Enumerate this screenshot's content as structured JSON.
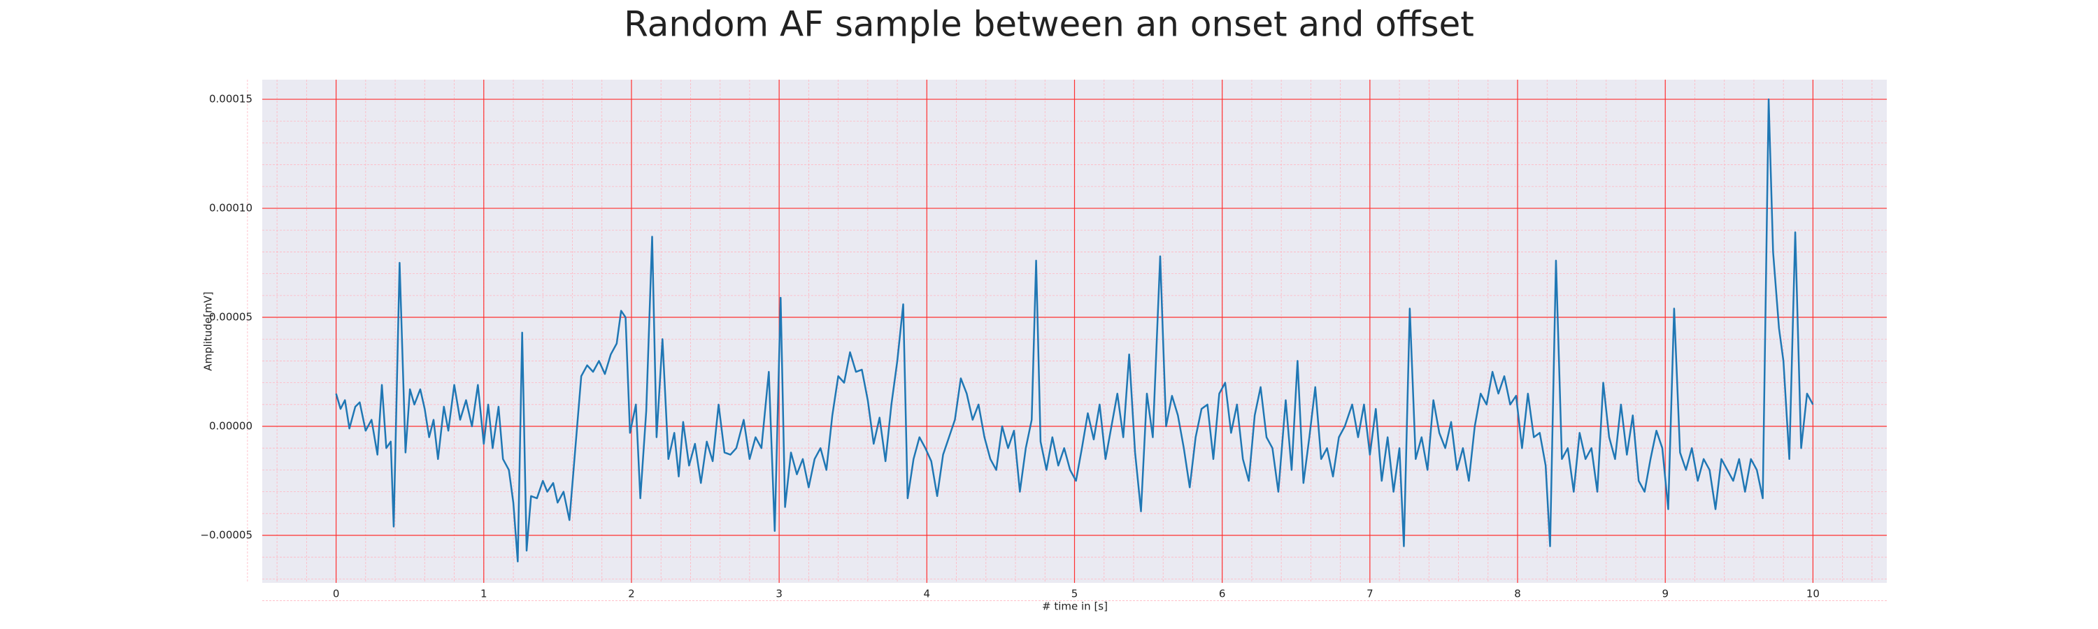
{
  "chart_data": {
    "type": "line",
    "title": "Random AF sample between an onset and offset",
    "xlabel": "# time in [s]",
    "ylabel": "Amplitude[mV]",
    "color": "#1f77b4",
    "grid": true,
    "minor_grid": true,
    "xlim": [
      -0.5,
      10.5
    ],
    "ylim": [
      -7.18e-05,
      0.000159
    ],
    "xticks": [
      0,
      1,
      2,
      3,
      4,
      5,
      6,
      7,
      8,
      9,
      10
    ],
    "yticks": [
      {
        "value": -5e-05,
        "label": "−0.00005"
      },
      {
        "value": 0,
        "label": "0.00000"
      },
      {
        "value": 5e-05,
        "label": "0.00005"
      },
      {
        "value": 0.0001,
        "label": "0.00010"
      },
      {
        "value": 0.00015,
        "label": "0.00015"
      }
    ],
    "x": [
      0.0,
      0.03,
      0.06,
      0.09,
      0.13,
      0.16,
      0.2,
      0.24,
      0.28,
      0.31,
      0.34,
      0.37,
      0.39,
      0.43,
      0.47,
      0.5,
      0.53,
      0.57,
      0.6,
      0.63,
      0.66,
      0.69,
      0.73,
      0.76,
      0.8,
      0.84,
      0.88,
      0.92,
      0.96,
      1.0,
      1.03,
      1.06,
      1.1,
      1.13,
      1.17,
      1.2,
      1.23,
      1.26,
      1.29,
      1.32,
      1.36,
      1.4,
      1.43,
      1.47,
      1.5,
      1.54,
      1.58,
      1.62,
      1.66,
      1.7,
      1.74,
      1.78,
      1.82,
      1.86,
      1.9,
      1.93,
      1.96,
      1.99,
      2.03,
      2.06,
      2.1,
      2.14,
      2.17,
      2.21,
      2.25,
      2.29,
      2.32,
      2.35,
      2.39,
      2.43,
      2.47,
      2.51,
      2.55,
      2.59,
      2.63,
      2.67,
      2.71,
      2.76,
      2.8,
      2.84,
      2.88,
      2.93,
      2.97,
      3.01,
      3.04,
      3.08,
      3.12,
      3.16,
      3.2,
      3.24,
      3.28,
      3.32,
      3.36,
      3.4,
      3.44,
      3.48,
      3.52,
      3.56,
      3.6,
      3.64,
      3.68,
      3.72,
      3.76,
      3.8,
      3.84,
      3.87,
      3.91,
      3.95,
      3.99,
      4.03,
      4.07,
      4.11,
      4.15,
      4.19,
      4.23,
      4.27,
      4.31,
      4.35,
      4.39,
      4.43,
      4.47,
      4.51,
      4.55,
      4.59,
      4.63,
      4.67,
      4.71,
      4.74,
      4.77,
      4.81,
      4.85,
      4.89,
      4.93,
      4.97,
      5.01,
      5.05,
      5.09,
      5.13,
      5.17,
      5.21,
      5.25,
      5.29,
      5.33,
      5.37,
      5.41,
      5.45,
      5.49,
      5.53,
      5.58,
      5.62,
      5.66,
      5.7,
      5.74,
      5.78,
      5.82,
      5.86,
      5.9,
      5.94,
      5.98,
      6.02,
      6.06,
      6.1,
      6.14,
      6.18,
      6.22,
      6.26,
      6.3,
      6.34,
      6.38,
      6.43,
      6.47,
      6.51,
      6.55,
      6.59,
      6.63,
      6.67,
      6.71,
      6.75,
      6.79,
      6.83,
      6.88,
      6.92,
      6.96,
      7.0,
      7.04,
      7.08,
      7.12,
      7.16,
      7.2,
      7.23,
      7.27,
      7.31,
      7.35,
      7.39,
      7.43,
      7.47,
      7.51,
      7.55,
      7.59,
      7.63,
      7.67,
      7.71,
      7.75,
      7.79,
      7.83,
      7.87,
      7.91,
      7.95,
      7.99,
      8.03,
      8.07,
      8.11,
      8.15,
      8.19,
      8.22,
      8.26,
      8.3,
      8.34,
      8.38,
      8.42,
      8.46,
      8.5,
      8.54,
      8.58,
      8.62,
      8.66,
      8.7,
      8.74,
      8.78,
      8.82,
      8.86,
      8.9,
      8.94,
      8.98,
      9.02,
      9.06,
      9.1,
      9.14,
      9.18,
      9.22,
      9.26,
      9.3,
      9.34,
      9.38,
      9.42,
      9.46,
      9.5,
      9.54,
      9.58,
      9.62,
      9.66,
      9.7,
      9.73,
      9.77,
      9.8,
      9.84,
      9.88,
      9.92,
      9.96,
      10.0
    ],
    "values": [
      1.5e-05,
      8e-06,
      1.2e-05,
      -1e-06,
      9e-06,
      1.1e-05,
      -2e-06,
      3e-06,
      -1.3e-05,
      1.9e-05,
      -1e-05,
      -7e-06,
      -4.6e-05,
      7.5e-05,
      -1.2e-05,
      1.7e-05,
      1e-05,
      1.7e-05,
      8e-06,
      -5e-06,
      3e-06,
      -1.5e-05,
      9e-06,
      -2e-06,
      1.9e-05,
      3e-06,
      1.2e-05,
      0,
      1.9e-05,
      -8e-06,
      1e-05,
      -1e-05,
      9e-06,
      -1.5e-05,
      -2e-05,
      -3.5e-05,
      -6.2e-05,
      4.3e-05,
      -5.7e-05,
      -3.2e-05,
      -3.3e-05,
      -2.5e-05,
      -3e-05,
      -2.6e-05,
      -3.5e-05,
      -3e-05,
      -4.3e-05,
      -1e-05,
      2.3e-05,
      2.8e-05,
      2.5e-05,
      3e-05,
      2.4e-05,
      3.3e-05,
      3.8e-05,
      5.3e-05,
      5e-05,
      -3e-06,
      1e-05,
      -3.3e-05,
      7e-06,
      8.7e-05,
      -5e-06,
      4e-05,
      -1.5e-05,
      -3e-06,
      -2.3e-05,
      2e-06,
      -1.8e-05,
      -8e-06,
      -2.6e-05,
      -7e-06,
      -1.6e-05,
      1e-05,
      -1.2e-05,
      -1.3e-05,
      -1e-05,
      3e-06,
      -1.5e-05,
      -5e-06,
      -1e-05,
      2.5e-05,
      -4.8e-05,
      5.9e-05,
      -3.7e-05,
      -1.2e-05,
      -2.2e-05,
      -1.5e-05,
      -2.8e-05,
      -1.5e-05,
      -1e-05,
      -2e-05,
      5e-06,
      2.3e-05,
      2e-05,
      3.4e-05,
      2.5e-05,
      2.6e-05,
      1.2e-05,
      -8e-06,
      4e-06,
      -1.6e-05,
      1e-05,
      3e-05,
      5.6e-05,
      -3.3e-05,
      -1.5e-05,
      -5e-06,
      -1e-05,
      -1.6e-05,
      -3.2e-05,
      -1.3e-05,
      -5e-06,
      3e-06,
      2.2e-05,
      1.5e-05,
      3e-06,
      1e-05,
      -5e-06,
      -1.5e-05,
      -2e-05,
      0,
      -1e-05,
      -2e-06,
      -3e-05,
      -1e-05,
      3e-06,
      7.6e-05,
      -7e-06,
      -2e-05,
      -5e-06,
      -1.8e-05,
      -1e-05,
      -2e-05,
      -2.5e-05,
      -1e-05,
      6e-06,
      -6e-06,
      1e-05,
      -1.5e-05,
      0,
      1.5e-05,
      -5e-06,
      3.3e-05,
      -1.2e-05,
      -3.9e-05,
      1.5e-05,
      -5e-06,
      7.8e-05,
      0,
      1.4e-05,
      5e-06,
      -1e-05,
      -2.8e-05,
      -5e-06,
      8e-06,
      1e-05,
      -1.5e-05,
      1.5e-05,
      2e-05,
      -3e-06,
      1e-05,
      -1.5e-05,
      -2.5e-05,
      5e-06,
      1.8e-05,
      -5e-06,
      -1e-05,
      -3e-05,
      1.2e-05,
      -2e-05,
      3e-05,
      -2.6e-05,
      -5e-06,
      1.8e-05,
      -1.5e-05,
      -1e-05,
      -2.3e-05,
      -5e-06,
      0,
      1e-05,
      -5e-06,
      1e-05,
      -1.3e-05,
      8e-06,
      -2.5e-05,
      -5e-06,
      -3e-05,
      -1e-05,
      -5.5e-05,
      5.4e-05,
      -1.5e-05,
      -5e-06,
      -2e-05,
      1.2e-05,
      -3e-06,
      -1e-05,
      2e-06,
      -2e-05,
      -1e-05,
      -2.5e-05,
      0,
      1.5e-05,
      1e-05,
      2.5e-05,
      1.5e-05,
      2.3e-05,
      1e-05,
      1.4e-05,
      -1e-05,
      1.5e-05,
      -5e-06,
      -3e-06,
      -1.8e-05,
      -5.5e-05,
      7.6e-05,
      -1.5e-05,
      -1e-05,
      -3e-05,
      -3e-06,
      -1.5e-05,
      -1e-05,
      -3e-05,
      2e-05,
      -5e-06,
      -1.5e-05,
      1e-05,
      -1.3e-05,
      5e-06,
      -2.5e-05,
      -3e-05,
      -1.5e-05,
      -2e-06,
      -1e-05,
      -3.8e-05,
      5.4e-05,
      -1.2e-05,
      -2e-05,
      -1e-05,
      -2.5e-05,
      -1.5e-05,
      -2e-05,
      -3.8e-05,
      -1.5e-05,
      -2e-05,
      -2.5e-05,
      -1.5e-05,
      -3e-05,
      -1.5e-05,
      -2e-05,
      -3.3e-05,
      0.00015,
      8e-05,
      4.5e-05,
      3e-05,
      -1.5e-05,
      8.9e-05,
      -1e-05,
      1.5e-05,
      1e-05
    ]
  }
}
